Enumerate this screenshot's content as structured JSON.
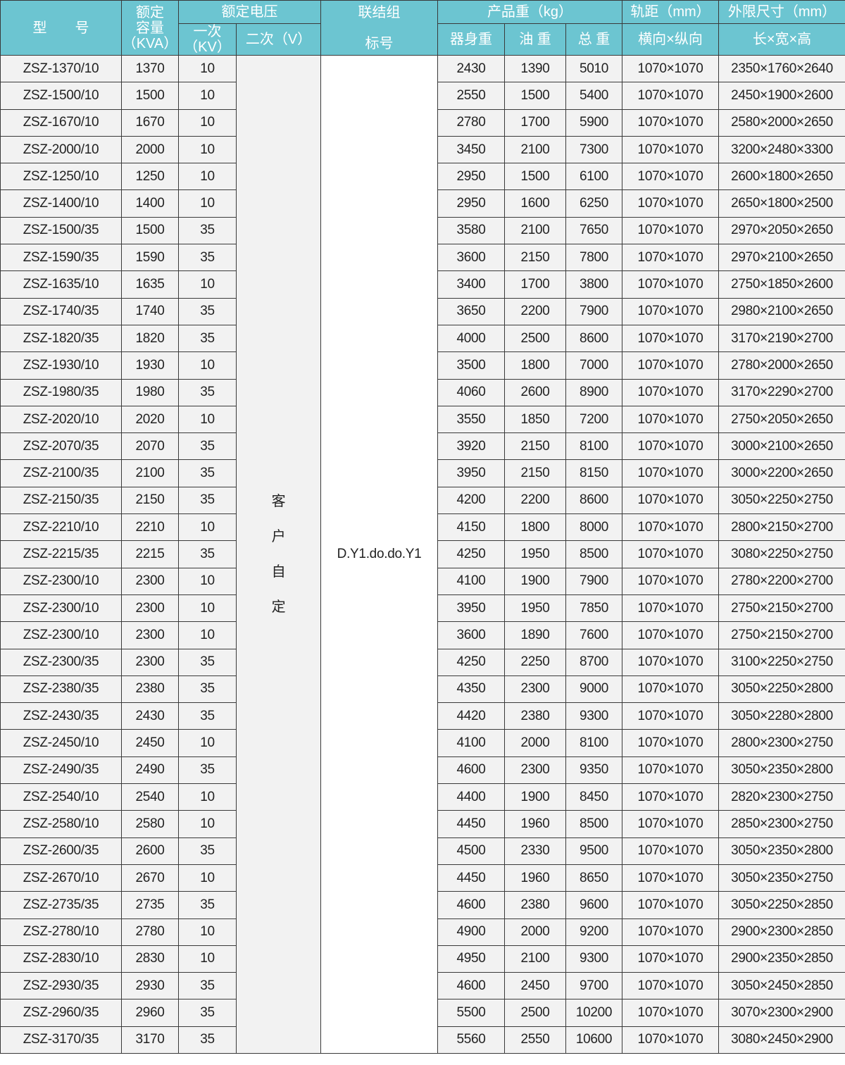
{
  "header": {
    "model": "型　　号",
    "capacity": [
      "额定",
      "容量",
      "（KVA）"
    ],
    "voltage": "额定电压",
    "primary": [
      "一次",
      "（KV）"
    ],
    "secondary": "二次（V）",
    "group": [
      "联结组",
      "标号"
    ],
    "weight": "产品重（kg）",
    "body_weight": "器身重",
    "oil_weight": "油  重",
    "total_weight": "总  重",
    "gauge": "轨距（mm）",
    "gauge_sub": "横向×纵向",
    "dims": "外限尺寸（mm）",
    "dims_sub": "长×宽×高"
  },
  "secondary_value": [
    "客",
    "户",
    "自",
    "定"
  ],
  "group_value": "D.Y1.do.do.Y1",
  "rows": [
    [
      "ZSZ-1370/10",
      "1370",
      "10",
      "2430",
      "1390",
      "5010",
      "1070×1070",
      "2350×1760×2640"
    ],
    [
      "ZSZ-1500/10",
      "1500",
      "10",
      "2550",
      "1500",
      "5400",
      "1070×1070",
      "2450×1900×2600"
    ],
    [
      "ZSZ-1670/10",
      "1670",
      "10",
      "2780",
      "1700",
      "5900",
      "1070×1070",
      "2580×2000×2650"
    ],
    [
      "ZSZ-2000/10",
      "2000",
      "10",
      "3450",
      "2100",
      "7300",
      "1070×1070",
      "3200×2480×3300"
    ],
    [
      "ZSZ-1250/10",
      "1250",
      "10",
      "2950",
      "1500",
      "6100",
      "1070×1070",
      "2600×1800×2650"
    ],
    [
      "ZSZ-1400/10",
      "1400",
      "10",
      "2950",
      "1600",
      "6250",
      "1070×1070",
      "2650×1800×2500"
    ],
    [
      "ZSZ-1500/35",
      "1500",
      "35",
      "3580",
      "2100",
      "7650",
      "1070×1070",
      "2970×2050×2650"
    ],
    [
      "ZSZ-1590/35",
      "1590",
      "35",
      "3600",
      "2150",
      "7800",
      "1070×1070",
      "2970×2100×2650"
    ],
    [
      "ZSZ-1635/10",
      "1635",
      "10",
      "3400",
      "1700",
      "3800",
      "1070×1070",
      "2750×1850×2600"
    ],
    [
      "ZSZ-1740/35",
      "1740",
      "35",
      "3650",
      "2200",
      "7900",
      "1070×1070",
      "2980×2100×2650"
    ],
    [
      "ZSZ-1820/35",
      "1820",
      "35",
      "4000",
      "2500",
      "8600",
      "1070×1070",
      "3170×2190×2700"
    ],
    [
      "ZSZ-1930/10",
      "1930",
      "10",
      "3500",
      "1800",
      "7000",
      "1070×1070",
      "2780×2000×2650"
    ],
    [
      "ZSZ-1980/35",
      "1980",
      "35",
      "4060",
      "2600",
      "8900",
      "1070×1070",
      "3170×2290×2700"
    ],
    [
      "ZSZ-2020/10",
      "2020",
      "10",
      "3550",
      "1850",
      "7200",
      "1070×1070",
      "2750×2050×2650"
    ],
    [
      "ZSZ-2070/35",
      "2070",
      "35",
      "3920",
      "2150",
      "8100",
      "1070×1070",
      "3000×2100×2650"
    ],
    [
      "ZSZ-2100/35",
      "2100",
      "35",
      "3950",
      "2150",
      "8150",
      "1070×1070",
      "3000×2200×2650"
    ],
    [
      "ZSZ-2150/35",
      "2150",
      "35",
      "4200",
      "2200",
      "8600",
      "1070×1070",
      "3050×2250×2750"
    ],
    [
      "ZSZ-2210/10",
      "2210",
      "10",
      "4150",
      "1800",
      "8000",
      "1070×1070",
      "2800×2150×2700"
    ],
    [
      "ZSZ-2215/35",
      "2215",
      "35",
      "4250",
      "1950",
      "8500",
      "1070×1070",
      "3080×2250×2750"
    ],
    [
      "ZSZ-2300/10",
      "2300",
      "10",
      "4100",
      "1900",
      "7900",
      "1070×1070",
      "2780×2200×2700"
    ],
    [
      "ZSZ-2300/10",
      "2300",
      "10",
      "3950",
      "1950",
      "7850",
      "1070×1070",
      "2750×2150×2700"
    ],
    [
      "ZSZ-2300/10",
      "2300",
      "10",
      "3600",
      "1890",
      "7600",
      "1070×1070",
      "2750×2150×2700"
    ],
    [
      "ZSZ-2300/35",
      "2300",
      "35",
      "4250",
      "2250",
      "8700",
      "1070×1070",
      "3100×2250×2750"
    ],
    [
      "ZSZ-2380/35",
      "2380",
      "35",
      "4350",
      "2300",
      "9000",
      "1070×1070",
      "3050×2250×2800"
    ],
    [
      "ZSZ-2430/35",
      "2430",
      "35",
      "4420",
      "2380",
      "9300",
      "1070×1070",
      "3050×2280×2800"
    ],
    [
      "ZSZ-2450/10",
      "2450",
      "10",
      "4100",
      "2000",
      "8100",
      "1070×1070",
      "2800×2300×2750"
    ],
    [
      "ZSZ-2490/35",
      "2490",
      "35",
      "4600",
      "2300",
      "9350",
      "1070×1070",
      "3050×2350×2800"
    ],
    [
      "ZSZ-2540/10",
      "2540",
      "10",
      "4400",
      "1900",
      "8450",
      "1070×1070",
      "2820×2300×2750"
    ],
    [
      "ZSZ-2580/10",
      "2580",
      "10",
      "4450",
      "1960",
      "8500",
      "1070×1070",
      "2850×2300×2750"
    ],
    [
      "ZSZ-2600/35",
      "2600",
      "35",
      "4500",
      "2330",
      "9500",
      "1070×1070",
      "3050×2350×2800"
    ],
    [
      "ZSZ-2670/10",
      "2670",
      "10",
      "4450",
      "1960",
      "8650",
      "1070×1070",
      "3050×2350×2750"
    ],
    [
      "ZSZ-2735/35",
      "2735",
      "35",
      "4600",
      "2380",
      "9600",
      "1070×1070",
      "3050×2250×2850"
    ],
    [
      "ZSZ-2780/10",
      "2780",
      "10",
      "4900",
      "2000",
      "9200",
      "1070×1070",
      "2900×2300×2850"
    ],
    [
      "ZSZ-2830/10",
      "2830",
      "10",
      "4950",
      "2100",
      "9300",
      "1070×1070",
      "2900×2350×2850"
    ],
    [
      "ZSZ-2930/35",
      "2930",
      "35",
      "4600",
      "2450",
      "9700",
      "1070×1070",
      "3050×2450×2850"
    ],
    [
      "ZSZ-2960/35",
      "2960",
      "35",
      "5500",
      "2500",
      "10200",
      "1070×1070",
      "3070×2300×2900"
    ],
    [
      "ZSZ-3170/35",
      "3170",
      "35",
      "5560",
      "2550",
      "10600",
      "1070×1070",
      "3080×2450×2900"
    ]
  ],
  "colors": {
    "header_bg": "#6cc5d1",
    "cell_bg": "#f2f2f2",
    "border": "#3a3a3a"
  }
}
